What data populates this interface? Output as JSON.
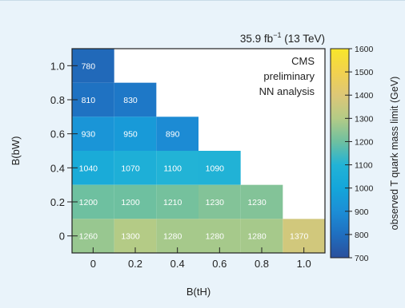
{
  "chart_data": {
    "type": "heatmap",
    "title": "35.9 fb⁻¹ (13 TeV)",
    "title_parts": {
      "lumi": "35.9 fb",
      "sup": "−1",
      "energy": " (13 TeV)"
    },
    "xlabel": "B(tH)",
    "ylabel": "B(bW)",
    "x_ticks": [
      "0",
      "0.2",
      "0.4",
      "0.6",
      "0.8",
      "1.0"
    ],
    "y_ticks": [
      "0",
      "0.2",
      "0.4",
      "0.6",
      "0.8",
      "1.0"
    ],
    "x_values": [
      0,
      0.2,
      0.4,
      0.6,
      0.8,
      1.0
    ],
    "y_values": [
      0,
      0.2,
      0.4,
      0.6,
      0.8,
      1.0
    ],
    "xlim": [
      -0.1,
      1.1
    ],
    "ylim": [
      -0.1,
      1.1
    ],
    "cells": [
      {
        "x": 0.0,
        "y": 1.0,
        "value": 780
      },
      {
        "x": 0.0,
        "y": 0.8,
        "value": 810
      },
      {
        "x": 0.2,
        "y": 0.8,
        "value": 830
      },
      {
        "x": 0.0,
        "y": 0.6,
        "value": 930
      },
      {
        "x": 0.2,
        "y": 0.6,
        "value": 950
      },
      {
        "x": 0.4,
        "y": 0.6,
        "value": 890
      },
      {
        "x": 0.0,
        "y": 0.4,
        "value": 1040
      },
      {
        "x": 0.2,
        "y": 0.4,
        "value": 1070
      },
      {
        "x": 0.4,
        "y": 0.4,
        "value": 1100
      },
      {
        "x": 0.6,
        "y": 0.4,
        "value": 1090
      },
      {
        "x": 0.0,
        "y": 0.2,
        "value": 1200
      },
      {
        "x": 0.2,
        "y": 0.2,
        "value": 1200
      },
      {
        "x": 0.4,
        "y": 0.2,
        "value": 1210
      },
      {
        "x": 0.6,
        "y": 0.2,
        "value": 1230
      },
      {
        "x": 0.8,
        "y": 0.2,
        "value": 1230
      },
      {
        "x": 0.0,
        "y": 0.0,
        "value": 1260
      },
      {
        "x": 0.2,
        "y": 0.0,
        "value": 1300
      },
      {
        "x": 0.4,
        "y": 0.0,
        "value": 1280
      },
      {
        "x": 0.6,
        "y": 0.0,
        "value": 1280
      },
      {
        "x": 0.8,
        "y": 0.0,
        "value": 1280
      },
      {
        "x": 1.0,
        "y": 0.0,
        "value": 1370
      }
    ],
    "annotation_lines": [
      "CMS",
      "preliminary",
      "NN analysis"
    ],
    "colorbar": {
      "label": "observed T quark mass limit (GeV)",
      "min": 700,
      "max": 1600,
      "ticks": [
        700,
        800,
        900,
        1000,
        1100,
        1200,
        1300,
        1400,
        1500,
        1600
      ],
      "colormap": [
        {
          "v": 700,
          "c": "#2a4f9c"
        },
        {
          "v": 800,
          "c": "#1f6fc0"
        },
        {
          "v": 900,
          "c": "#1c8ed6"
        },
        {
          "v": 1000,
          "c": "#14a6da"
        },
        {
          "v": 1100,
          "c": "#22b3d6"
        },
        {
          "v": 1200,
          "c": "#6ec0a0"
        },
        {
          "v": 1300,
          "c": "#b4cb86"
        },
        {
          "v": 1400,
          "c": "#ddc777"
        },
        {
          "v": 1500,
          "c": "#f2d24e"
        },
        {
          "v": 1600,
          "c": "#f8e62a"
        }
      ]
    },
    "grid": false,
    "colors": {
      "background": "#e9f3fa",
      "axis": "#222222",
      "cell_text": "#ffffff"
    }
  }
}
